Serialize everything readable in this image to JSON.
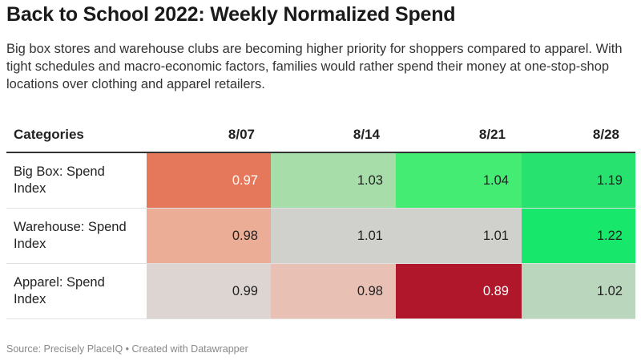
{
  "title": "Back to School 2022: Weekly Normalized Spend",
  "subtitle": "Big box stores and warehouse clubs are becoming higher priority for shoppers compared to apparel. With tight schedules and macro-economic factors, families would rather spend their money at one-stop-shop locations over clothing and apparel retailers.",
  "source": "Source: Precisely PlaceIQ • Created with Datawrapper",
  "chart_data": {
    "type": "heatmap",
    "header_label": "Categories",
    "columns": [
      "8/07",
      "8/14",
      "8/21",
      "8/28"
    ],
    "rows": [
      {
        "label": "Big Box: Spend Index",
        "values": [
          0.97,
          1.03,
          1.04,
          1.19
        ],
        "colors": [
          "#e5775a",
          "#a6dda9",
          "#44ec73",
          "#27e26e"
        ],
        "text_colors": [
          "#ffffff",
          "#222222",
          "#222222",
          "#222222"
        ]
      },
      {
        "label": "Warehouse: Spend Index",
        "values": [
          0.98,
          1.01,
          1.01,
          1.22
        ],
        "colors": [
          "#ecad96",
          "#d0d0cd",
          "#d0d0cd",
          "#17e86b"
        ],
        "text_colors": [
          "#222222",
          "#222222",
          "#222222",
          "#222222"
        ]
      },
      {
        "label": "Apparel: Spend Index",
        "values": [
          0.99,
          0.98,
          0.89,
          1.02
        ],
        "colors": [
          "#ddd5d2",
          "#e8c0b4",
          "#b0172b",
          "#bad6bd"
        ],
        "text_colors": [
          "#222222",
          "#222222",
          "#ffffff",
          "#222222"
        ]
      }
    ]
  }
}
